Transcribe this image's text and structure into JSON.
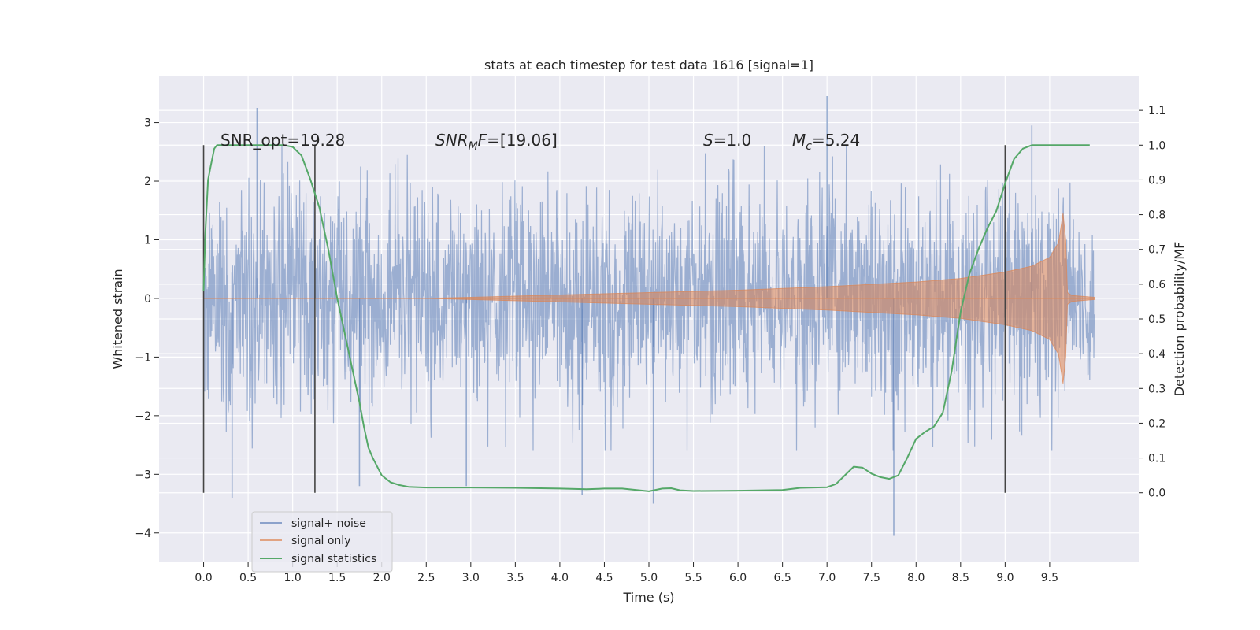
{
  "chart_data": {
    "type": "line",
    "title": "stats at each timestep for test data 1616 [signal=1]",
    "xlabel": "Time (s)",
    "ylabel_left": "Whitened strain",
    "ylabel_right": "Detection probability/MF",
    "xlim": [
      -0.5,
      10.5
    ],
    "ylim_left": [
      -4.5,
      3.8
    ],
    "ylim_right": [
      -0.2,
      1.2
    ],
    "x_ticks": [
      "0.0",
      "0.5",
      "1.0",
      "1.5",
      "2.0",
      "2.5",
      "3.0",
      "3.5",
      "4.0",
      "4.5",
      "5.0",
      "5.5",
      "6.0",
      "6.5",
      "7.0",
      "7.5",
      "8.0",
      "8.5",
      "9.0",
      "9.5"
    ],
    "y_left_ticks": [
      "3",
      "2",
      "1",
      "0",
      "−1",
      "−2",
      "−3",
      "−4"
    ],
    "y_right_ticks": [
      "1.1",
      "1.0",
      "0.9",
      "0.8",
      "0.7",
      "0.6",
      "0.5",
      "0.4",
      "0.3",
      "0.2",
      "0.1",
      "0.0"
    ],
    "grid": true,
    "legend_position": "bottom-left",
    "colors": {
      "background": "#eaeaf2",
      "noise": "#4c72b0",
      "signal": "#dd8452",
      "statistic": "#55a868",
      "vline": "#444444"
    },
    "annotations": {
      "snr_opt_prefix": "SNR_opt=",
      "snr_opt_value": "19.28",
      "snr_mf_main": "SNR",
      "snr_mf_sub": "M",
      "snr_mf_rest": "F",
      "snr_mf_value": "=[19.06]",
      "s_symbol": "S",
      "s_value": "=1.0",
      "mc_main": "M",
      "mc_sub": "c",
      "mc_value": "=5.24"
    },
    "vertical_lines_x": [
      0.0,
      1.25,
      9.0
    ],
    "series": [
      {
        "name": "signal+ noise",
        "kind": "noise_band",
        "x_range": [
          0.0,
          10.0
        ],
        "typical_amplitude": 1.5,
        "extremes": [
          {
            "x": 0.6,
            "y": 3.25
          },
          {
            "x": 0.32,
            "y": -3.4
          },
          {
            "x": 1.75,
            "y": -3.2
          },
          {
            "x": 2.95,
            "y": -3.2
          },
          {
            "x": 4.25,
            "y": -3.35
          },
          {
            "x": 5.05,
            "y": -3.5
          },
          {
            "x": 7.0,
            "y": 3.45
          },
          {
            "x": 7.75,
            "y": -4.05
          },
          {
            "x": 9.3,
            "y": 2.95
          }
        ]
      },
      {
        "name": "signal only",
        "kind": "chirp_envelope",
        "x": [
          0.0,
          2.5,
          3.0,
          4.0,
          5.0,
          6.0,
          7.0,
          8.0,
          8.5,
          9.0,
          9.3,
          9.5,
          9.6,
          9.65,
          9.68,
          9.7,
          9.75,
          10.0
        ],
        "envelope": [
          0.0,
          0.0,
          0.02,
          0.06,
          0.1,
          0.14,
          0.2,
          0.28,
          0.34,
          0.45,
          0.55,
          0.7,
          0.95,
          1.45,
          1.0,
          0.1,
          0.05,
          0.02
        ]
      },
      {
        "name": "signal statistics",
        "kind": "line",
        "x": [
          0.0,
          0.02,
          0.05,
          0.08,
          0.12,
          0.15,
          0.2,
          0.3,
          0.5,
          0.7,
          0.9,
          1.0,
          1.1,
          1.2,
          1.3,
          1.4,
          1.5,
          1.6,
          1.7,
          1.75,
          1.8,
          1.85,
          1.9,
          2.0,
          2.1,
          2.2,
          2.3,
          2.5,
          3.0,
          3.5,
          4.0,
          4.3,
          4.5,
          4.7,
          5.0,
          5.15,
          5.25,
          5.35,
          5.5,
          6.0,
          6.5,
          6.7,
          7.0,
          7.1,
          7.2,
          7.3,
          7.4,
          7.5,
          7.6,
          7.7,
          7.8,
          7.9,
          8.0,
          8.1,
          8.2,
          8.3,
          8.4,
          8.5,
          8.6,
          8.7,
          8.8,
          8.9,
          9.0,
          9.1,
          9.2,
          9.3,
          9.5,
          9.95
        ],
        "y": [
          0.58,
          0.75,
          0.9,
          0.94,
          0.99,
          1.0,
          1.0,
          1.0,
          1.0,
          1.0,
          1.0,
          0.995,
          0.97,
          0.9,
          0.82,
          0.7,
          0.56,
          0.44,
          0.32,
          0.26,
          0.19,
          0.13,
          0.1,
          0.05,
          0.03,
          0.022,
          0.017,
          0.015,
          0.015,
          0.014,
          0.012,
          0.01,
          0.012,
          0.012,
          0.004,
          0.012,
          0.013,
          0.007,
          0.005,
          0.006,
          0.008,
          0.014,
          0.016,
          0.025,
          0.05,
          0.075,
          0.072,
          0.055,
          0.045,
          0.04,
          0.05,
          0.1,
          0.155,
          0.175,
          0.19,
          0.23,
          0.35,
          0.52,
          0.63,
          0.7,
          0.76,
          0.81,
          0.89,
          0.96,
          0.99,
          1.0,
          1.0,
          1.0
        ]
      }
    ]
  }
}
